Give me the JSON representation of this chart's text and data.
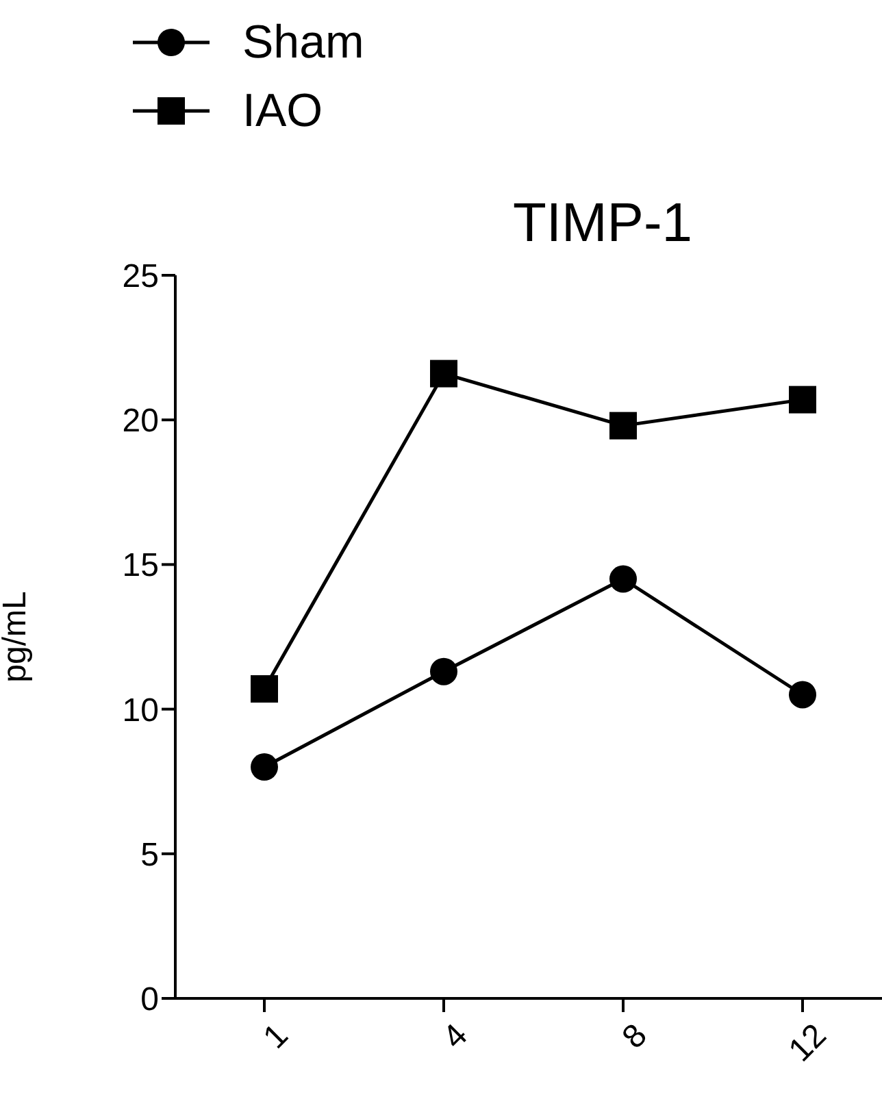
{
  "chart_data": {
    "type": "line",
    "title": "TIMP-1",
    "ylabel": "pg/mL",
    "categories": [
      "1",
      "4",
      "8",
      "12"
    ],
    "series": [
      {
        "name": "Sham",
        "color": "#000000",
        "marker": "circle",
        "values": [
          8.0,
          11.3,
          14.5,
          10.5
        ]
      },
      {
        "name": "IAO",
        "color": "#000000",
        "marker": "square",
        "values": [
          10.7,
          21.6,
          19.8,
          20.7
        ]
      }
    ],
    "ylim": [
      0,
      25
    ],
    "yticks": [
      0,
      5,
      10,
      15,
      20,
      25
    ],
    "grid": false,
    "legend": "top left",
    "line_style": "solid"
  }
}
